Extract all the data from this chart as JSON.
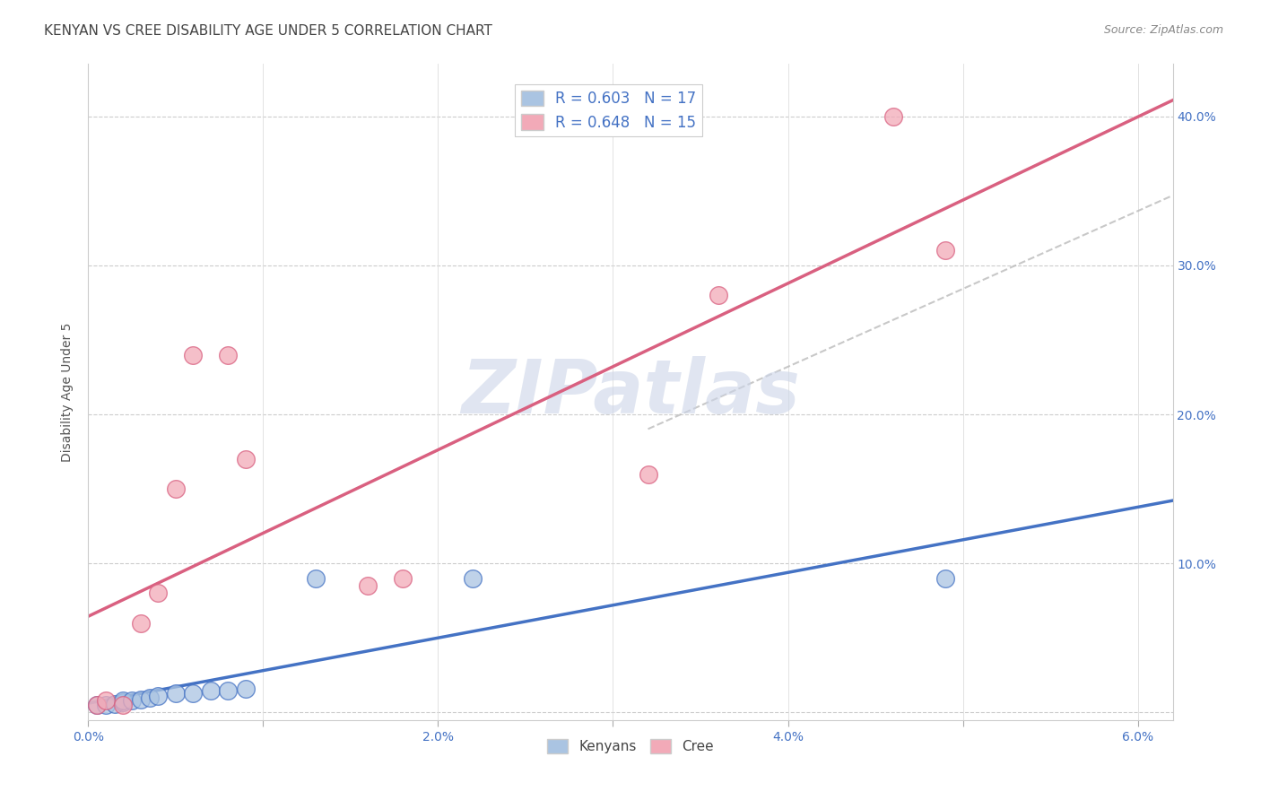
{
  "title": "KENYAN VS CREE DISABILITY AGE UNDER 5 CORRELATION CHART",
  "source": "Source: ZipAtlas.com",
  "ylabel_label": "Disability Age Under 5",
  "xlim": [
    0.0,
    0.062
  ],
  "ylim": [
    -0.005,
    0.435
  ],
  "xtick_positions": [
    0.0,
    0.01,
    0.02,
    0.03,
    0.04,
    0.05,
    0.06
  ],
  "xticklabels": [
    "0.0%",
    "",
    "2.0%",
    "",
    "4.0%",
    "",
    "6.0%"
  ],
  "ytick_positions": [
    0.0,
    0.1,
    0.2,
    0.3,
    0.4
  ],
  "yticklabels_right": [
    "",
    "10.0%",
    "20.0%",
    "30.0%",
    "40.0%"
  ],
  "kenyan_R": 0.603,
  "kenyan_N": 17,
  "cree_R": 0.648,
  "cree_N": 15,
  "kenyan_color": "#aac4e2",
  "cree_color": "#f2aab8",
  "kenyan_line_color": "#4472c4",
  "cree_line_color": "#d96080",
  "trend_line_color": "#bbbbbb",
  "kenyan_x": [
    0.0005,
    0.001,
    0.0015,
    0.002,
    0.002,
    0.0025,
    0.003,
    0.0035,
    0.004,
    0.005,
    0.006,
    0.007,
    0.008,
    0.009,
    0.013,
    0.022,
    0.049
  ],
  "kenyan_y": [
    0.005,
    0.005,
    0.006,
    0.007,
    0.008,
    0.008,
    0.009,
    0.01,
    0.011,
    0.013,
    0.013,
    0.015,
    0.015,
    0.016,
    0.09,
    0.09,
    0.09
  ],
  "cree_x": [
    0.0005,
    0.001,
    0.002,
    0.003,
    0.004,
    0.005,
    0.006,
    0.008,
    0.009,
    0.016,
    0.018,
    0.032,
    0.036,
    0.046,
    0.049
  ],
  "cree_y": [
    0.005,
    0.008,
    0.005,
    0.06,
    0.08,
    0.15,
    0.24,
    0.24,
    0.17,
    0.085,
    0.09,
    0.16,
    0.28,
    0.4,
    0.31
  ],
  "title_fontsize": 11,
  "source_fontsize": 9,
  "axis_label_fontsize": 10,
  "tick_fontsize": 10,
  "legend_fontsize": 12,
  "watermark_text": "ZIPatlas",
  "watermark_color": "#ccd5e8",
  "watermark_fontsize": 60
}
